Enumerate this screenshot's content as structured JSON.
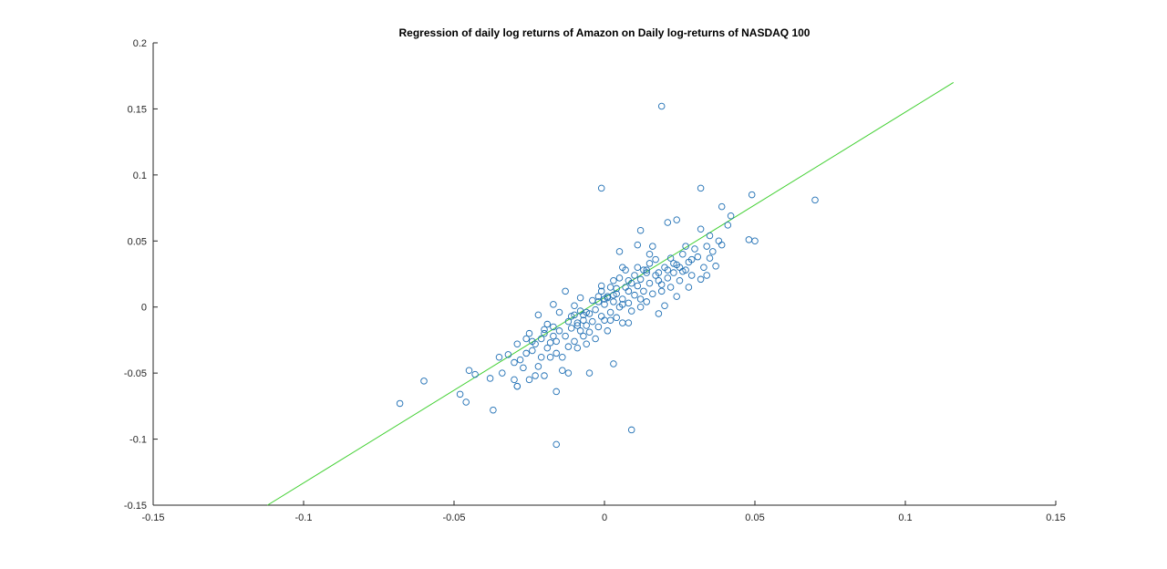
{
  "chart_data": {
    "type": "scatter",
    "title": "Regression of daily log returns of Amazon on Daily log-returns of NASDAQ 100",
    "xlabel": "",
    "ylabel": "",
    "xlim": [
      -0.15,
      0.15
    ],
    "ylim": [
      -0.15,
      0.2
    ],
    "xticks": [
      "-0.15",
      "-0.1",
      "-0.05",
      "0",
      "0.05",
      "0.1",
      "0.15"
    ],
    "yticks": [
      "-0.15",
      "-0.1",
      "-0.05",
      "0",
      "0.05",
      "0.1",
      "0.15",
      "0.2"
    ],
    "grid": false,
    "legend": "none",
    "series": [
      {
        "marker": "circle",
        "color": "#1f6fb4",
        "points": [
          [
            -0.068,
            -0.073
          ],
          [
            -0.06,
            -0.056
          ],
          [
            -0.048,
            -0.066
          ],
          [
            -0.046,
            -0.072
          ],
          [
            -0.045,
            -0.048
          ],
          [
            -0.043,
            -0.051
          ],
          [
            -0.038,
            -0.054
          ],
          [
            -0.037,
            -0.078
          ],
          [
            -0.035,
            -0.038
          ],
          [
            -0.034,
            -0.05
          ],
          [
            -0.032,
            -0.036
          ],
          [
            -0.03,
            -0.042
          ],
          [
            -0.03,
            -0.055
          ],
          [
            -0.029,
            -0.06
          ],
          [
            -0.029,
            -0.028
          ],
          [
            -0.028,
            -0.04
          ],
          [
            -0.027,
            -0.046
          ],
          [
            -0.026,
            -0.035
          ],
          [
            -0.025,
            -0.055
          ],
          [
            -0.025,
            -0.02
          ],
          [
            -0.024,
            -0.033
          ],
          [
            -0.023,
            -0.052
          ],
          [
            -0.023,
            -0.028
          ],
          [
            -0.022,
            -0.045
          ],
          [
            -0.022,
            -0.006
          ],
          [
            -0.021,
            -0.024
          ],
          [
            -0.021,
            -0.038
          ],
          [
            -0.02,
            -0.02
          ],
          [
            -0.02,
            -0.052
          ],
          [
            -0.019,
            -0.031
          ],
          [
            -0.018,
            -0.027
          ],
          [
            -0.018,
            -0.038
          ],
          [
            -0.017,
            -0.015
          ],
          [
            -0.017,
            -0.022
          ],
          [
            -0.016,
            -0.035
          ],
          [
            -0.016,
            -0.026
          ],
          [
            -0.015,
            -0.004
          ],
          [
            -0.015,
            -0.018
          ],
          [
            -0.014,
            -0.048
          ],
          [
            -0.014,
            -0.038
          ],
          [
            -0.013,
            -0.022
          ],
          [
            -0.012,
            -0.03
          ],
          [
            -0.012,
            -0.05
          ],
          [
            -0.011,
            -0.016
          ],
          [
            -0.01,
            -0.026
          ],
          [
            -0.01,
            -0.006
          ],
          [
            -0.009,
            -0.012
          ],
          [
            -0.009,
            -0.031
          ],
          [
            -0.008,
            -0.018
          ],
          [
            -0.008,
            -0.003
          ],
          [
            -0.007,
            -0.022
          ],
          [
            -0.007,
            -0.01
          ],
          [
            -0.006,
            -0.028
          ],
          [
            -0.006,
            -0.014
          ],
          [
            -0.005,
            -0.005
          ],
          [
            -0.005,
            -0.019
          ],
          [
            -0.004,
            0.005
          ],
          [
            -0.004,
            -0.011
          ],
          [
            -0.003,
            -0.024
          ],
          [
            -0.003,
            -0.002
          ],
          [
            -0.002,
            -0.015
          ],
          [
            -0.002,
            0.008
          ],
          [
            -0.001,
            -0.007
          ],
          [
            -0.001,
            0.012
          ],
          [
            0.0,
            -0.01
          ],
          [
            0.0,
            0.002
          ],
          [
            0.001,
            0.008
          ],
          [
            0.001,
            -0.018
          ],
          [
            0.002,
            0.015
          ],
          [
            0.002,
            -0.004
          ],
          [
            0.003,
            0.004
          ],
          [
            0.003,
            0.02
          ],
          [
            0.004,
            -0.008
          ],
          [
            0.004,
            0.01
          ],
          [
            0.005,
            0.0
          ],
          [
            0.005,
            0.022
          ],
          [
            0.006,
            0.006
          ],
          [
            0.006,
            -0.012
          ],
          [
            0.007,
            0.015
          ],
          [
            0.007,
            0.028
          ],
          [
            0.008,
            0.003
          ],
          [
            0.008,
            0.012
          ],
          [
            0.009,
            0.018
          ],
          [
            0.009,
            -0.003
          ],
          [
            0.01,
            0.024
          ],
          [
            0.01,
            0.009
          ],
          [
            0.011,
            0.03
          ],
          [
            0.011,
            0.016
          ],
          [
            0.012,
            0.006
          ],
          [
            0.012,
            0.021
          ],
          [
            0.013,
            0.012
          ],
          [
            0.014,
            0.026
          ],
          [
            0.014,
            0.004
          ],
          [
            0.015,
            0.033
          ],
          [
            0.015,
            0.018
          ],
          [
            0.016,
            0.01
          ],
          [
            0.016,
            0.046
          ],
          [
            0.017,
            0.024
          ],
          [
            0.018,
            -0.005
          ],
          [
            0.018,
            0.02
          ],
          [
            0.019,
            0.012
          ],
          [
            0.02,
            0.03
          ],
          [
            0.02,
            0.001
          ],
          [
            0.021,
            0.022
          ],
          [
            0.022,
            0.037
          ],
          [
            0.022,
            0.015
          ],
          [
            0.023,
            0.026
          ],
          [
            0.024,
            0.008
          ],
          [
            0.024,
            0.032
          ],
          [
            0.025,
            0.02
          ],
          [
            0.026,
            0.04
          ],
          [
            0.026,
            0.027
          ],
          [
            0.027,
            0.046
          ],
          [
            0.028,
            0.015
          ],
          [
            0.028,
            0.034
          ],
          [
            0.029,
            0.024
          ],
          [
            0.03,
            0.044
          ],
          [
            0.031,
            0.038
          ],
          [
            0.032,
            0.021
          ],
          [
            0.032,
            0.059
          ],
          [
            0.033,
            0.03
          ],
          [
            0.034,
            0.046
          ],
          [
            0.035,
            0.037
          ],
          [
            0.035,
            0.054
          ],
          [
            0.036,
            0.042
          ],
          [
            0.038,
            0.05
          ],
          [
            0.039,
            0.047
          ],
          [
            0.039,
            0.076
          ],
          [
            0.041,
            0.062
          ],
          [
            0.042,
            0.069
          ],
          [
            0.048,
            0.051
          ],
          [
            0.049,
            0.085
          ],
          [
            0.05,
            0.05
          ],
          [
            0.07,
            0.081
          ],
          [
            0.032,
            0.09
          ],
          [
            0.019,
            0.152
          ],
          [
            -0.001,
            0.09
          ],
          [
            0.024,
            0.066
          ],
          [
            0.021,
            0.064
          ],
          [
            0.012,
            0.058
          ],
          [
            0.017,
            0.036
          ],
          [
            0.009,
            -0.093
          ],
          [
            0.003,
            -0.043
          ],
          [
            -0.005,
            -0.05
          ],
          [
            -0.016,
            -0.064
          ],
          [
            -0.016,
            -0.104
          ],
          [
            -0.029,
            -0.06
          ],
          [
            0.0,
            0.006
          ],
          [
            0.001,
            0.007
          ],
          [
            0.003,
            0.009
          ],
          [
            -0.002,
            0.004
          ],
          [
            0.004,
            0.014
          ],
          [
            0.006,
            0.002
          ],
          [
            0.008,
            0.02
          ],
          [
            0.013,
            0.028
          ],
          [
            0.018,
            0.026
          ],
          [
            0.021,
            0.028
          ],
          [
            0.023,
            0.033
          ],
          [
            0.025,
            0.03
          ],
          [
            0.027,
            0.028
          ],
          [
            -0.011,
            -0.007
          ],
          [
            -0.009,
            -0.014
          ],
          [
            -0.007,
            -0.006
          ],
          [
            -0.012,
            -0.011
          ],
          [
            -0.006,
            -0.004
          ],
          [
            -0.019,
            -0.013
          ],
          [
            -0.02,
            -0.017
          ],
          [
            -0.024,
            -0.026
          ],
          [
            -0.026,
            -0.024
          ],
          [
            -0.013,
            0.012
          ],
          [
            -0.017,
            0.002
          ],
          [
            -0.01,
            0.001
          ],
          [
            0.005,
            0.042
          ],
          [
            0.011,
            0.047
          ],
          [
            0.014,
            0.028
          ],
          [
            -0.001,
            0.016
          ],
          [
            0.002,
            -0.01
          ],
          [
            -0.008,
            0.007
          ],
          [
            0.019,
            0.017
          ],
          [
            0.029,
            0.036
          ],
          [
            0.034,
            0.024
          ],
          [
            0.037,
            0.031
          ],
          [
            0.015,
            0.04
          ],
          [
            0.006,
            0.03
          ],
          [
            0.008,
            -0.012
          ],
          [
            0.012,
            0.0
          ]
        ]
      }
    ],
    "fit_line": {
      "color": "#3ecf2e",
      "x": [
        -0.112,
        0.116
      ],
      "y": [
        -0.15,
        0.17
      ]
    }
  }
}
